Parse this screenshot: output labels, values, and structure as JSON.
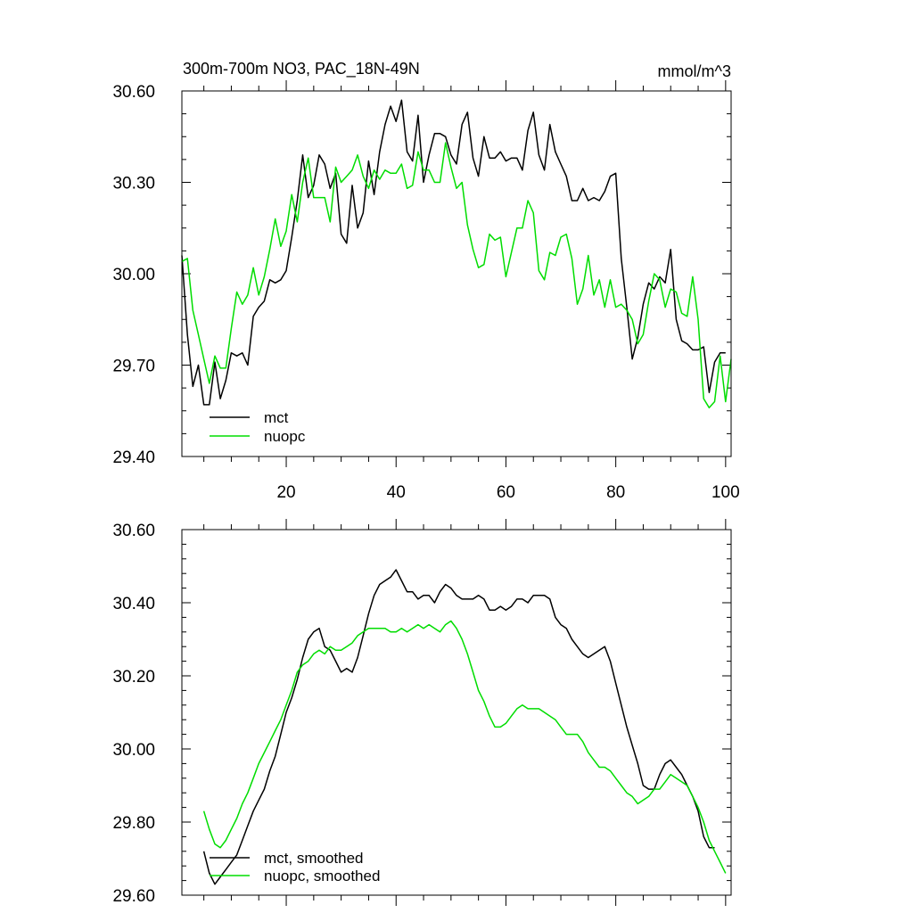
{
  "page_title": "300m-700m NO3, PAC_18N-49N",
  "units": "mmol/m^3",
  "series_colors": {
    "mct": "#000000",
    "nuopc": "#00dd00"
  },
  "chart_data": [
    {
      "type": "line",
      "title": "300m-700m NO3, PAC_18N-49N",
      "units_label": "mmol/m^3",
      "xlim": [
        1,
        101
      ],
      "ylim": [
        29.4,
        30.6
      ],
      "xticks": [
        20,
        40,
        60,
        80,
        100
      ],
      "xtick_labels": [
        "20",
        "40",
        "60",
        "80",
        "100"
      ],
      "yticks": [
        29.4,
        29.7,
        30.0,
        30.3,
        30.6
      ],
      "ytick_labels": [
        "29.40",
        "29.70",
        "30.00",
        "30.30",
        "30.60"
      ],
      "legend_position": "bottom-left",
      "series": [
        {
          "name": "mct",
          "color": "#000000",
          "values": [
            30.06,
            29.8,
            29.63,
            29.7,
            29.57,
            29.57,
            29.71,
            29.59,
            29.65,
            29.74,
            29.73,
            29.74,
            29.7,
            29.86,
            29.89,
            29.91,
            29.98,
            29.97,
            29.98,
            30.01,
            30.12,
            30.24,
            30.39,
            30.25,
            30.29,
            30.39,
            30.36,
            30.28,
            30.33,
            30.13,
            30.1,
            30.29,
            30.15,
            30.2,
            30.37,
            30.26,
            30.4,
            30.49,
            30.55,
            30.5,
            30.57,
            30.4,
            30.37,
            30.52,
            30.3,
            30.39,
            30.46,
            30.46,
            30.45,
            30.39,
            30.36,
            30.49,
            30.53,
            30.38,
            30.32,
            30.45,
            30.38,
            30.38,
            30.4,
            30.37,
            30.38,
            30.38,
            30.34,
            30.47,
            30.53,
            30.39,
            30.34,
            30.49,
            30.4,
            30.36,
            30.32,
            30.24,
            30.24,
            30.28,
            30.24,
            30.25,
            30.24,
            30.27,
            30.32,
            30.33,
            30.05,
            29.89,
            29.72,
            29.79,
            29.9,
            29.97,
            29.95,
            29.99,
            29.97,
            30.08,
            29.85,
            29.78,
            29.77,
            29.75,
            29.75,
            29.76,
            29.61,
            29.71,
            29.74,
            29.74
          ]
        },
        {
          "name": "nuopc",
          "color": "#00dd00",
          "values": [
            30.04,
            30.05,
            29.88,
            29.8,
            29.72,
            29.64,
            29.73,
            29.69,
            29.69,
            29.82,
            29.94,
            29.9,
            29.93,
            30.02,
            29.93,
            29.99,
            30.08,
            30.18,
            30.09,
            30.14,
            30.26,
            30.17,
            30.3,
            30.38,
            30.25,
            30.25,
            30.25,
            30.17,
            30.35,
            30.3,
            30.32,
            30.34,
            30.39,
            30.32,
            30.28,
            30.34,
            30.31,
            30.34,
            30.33,
            30.33,
            30.36,
            30.28,
            30.29,
            30.4,
            30.34,
            30.34,
            30.3,
            30.3,
            30.43,
            30.35,
            30.28,
            30.3,
            30.16,
            30.08,
            30.02,
            30.03,
            30.13,
            30.11,
            30.12,
            29.99,
            30.07,
            30.15,
            30.15,
            30.24,
            30.2,
            30.01,
            29.98,
            30.07,
            30.06,
            30.12,
            30.13,
            30.05,
            29.9,
            29.95,
            30.06,
            29.93,
            29.98,
            29.89,
            29.98,
            29.89,
            29.9,
            29.88,
            29.85,
            29.77,
            29.8,
            29.91,
            30.0,
            29.98,
            29.89,
            29.95,
            29.94,
            29.87,
            29.86,
            29.99,
            29.85,
            29.59,
            29.56,
            29.58,
            29.73,
            29.58,
            29.72
          ]
        }
      ],
      "legend": [
        "mct",
        "nuopc"
      ]
    },
    {
      "type": "line",
      "title": "",
      "xlim": [
        1,
        101
      ],
      "ylim": [
        29.6,
        30.6
      ],
      "xticks": [
        20,
        40,
        60,
        80,
        100
      ],
      "xtick_labels": [],
      "yticks": [
        29.6,
        29.8,
        30.0,
        30.2,
        30.4,
        30.6
      ],
      "ytick_labels": [
        "29.60",
        "29.80",
        "30.00",
        "30.20",
        "30.40",
        "30.60"
      ],
      "legend_position": "bottom-left",
      "series": [
        {
          "name": "mct, smoothed",
          "color": "#000000",
          "x_start": 5,
          "values": [
            29.72,
            29.66,
            29.63,
            29.65,
            29.67,
            29.69,
            29.71,
            29.75,
            29.79,
            29.83,
            29.86,
            29.89,
            29.94,
            29.98,
            30.04,
            30.1,
            30.14,
            30.19,
            30.25,
            30.3,
            30.32,
            30.33,
            30.28,
            30.27,
            30.24,
            30.21,
            30.22,
            30.21,
            30.25,
            30.31,
            30.37,
            30.42,
            30.45,
            30.46,
            30.47,
            30.49,
            30.46,
            30.43,
            30.43,
            30.41,
            30.42,
            30.42,
            30.4,
            30.43,
            30.45,
            30.44,
            30.42,
            30.41,
            30.41,
            30.41,
            30.42,
            30.41,
            30.38,
            30.38,
            30.39,
            30.38,
            30.39,
            30.41,
            30.41,
            30.4,
            30.42,
            30.42,
            30.42,
            30.41,
            30.36,
            30.34,
            30.33,
            30.3,
            30.28,
            30.26,
            30.25,
            30.26,
            30.27,
            30.28,
            30.24,
            30.18,
            30.12,
            30.06,
            30.01,
            29.96,
            29.9,
            29.89,
            29.89,
            29.93,
            29.96,
            29.97,
            29.95,
            29.93,
            29.9,
            29.87,
            29.83,
            29.76,
            29.73,
            29.73
          ]
        },
        {
          "name": "nuopc, smoothed",
          "color": "#00dd00",
          "x_start": 5,
          "values": [
            29.83,
            29.78,
            29.74,
            29.73,
            29.75,
            29.78,
            29.81,
            29.85,
            29.88,
            29.92,
            29.96,
            29.99,
            30.02,
            30.05,
            30.08,
            30.12,
            30.16,
            30.21,
            30.23,
            30.24,
            30.26,
            30.27,
            30.26,
            30.28,
            30.27,
            30.27,
            30.28,
            30.29,
            30.31,
            30.32,
            30.33,
            30.33,
            30.33,
            30.33,
            30.32,
            30.32,
            30.33,
            30.32,
            30.33,
            30.34,
            30.33,
            30.34,
            30.33,
            30.32,
            30.34,
            30.35,
            30.33,
            30.3,
            30.26,
            30.21,
            30.16,
            30.13,
            30.09,
            30.06,
            30.06,
            30.07,
            30.09,
            30.11,
            30.12,
            30.11,
            30.11,
            30.11,
            30.1,
            30.09,
            30.08,
            30.06,
            30.04,
            30.04,
            30.04,
            30.02,
            29.99,
            29.97,
            29.95,
            29.95,
            29.94,
            29.92,
            29.9,
            29.88,
            29.87,
            29.85,
            29.86,
            29.87,
            29.89,
            29.89,
            29.91,
            29.93,
            29.92,
            29.91,
            29.9,
            29.87,
            29.84,
            29.8,
            29.75,
            29.72,
            29.69,
            29.66
          ]
        }
      ],
      "legend": [
        "mct, smoothed",
        "nuopc, smoothed"
      ]
    }
  ]
}
